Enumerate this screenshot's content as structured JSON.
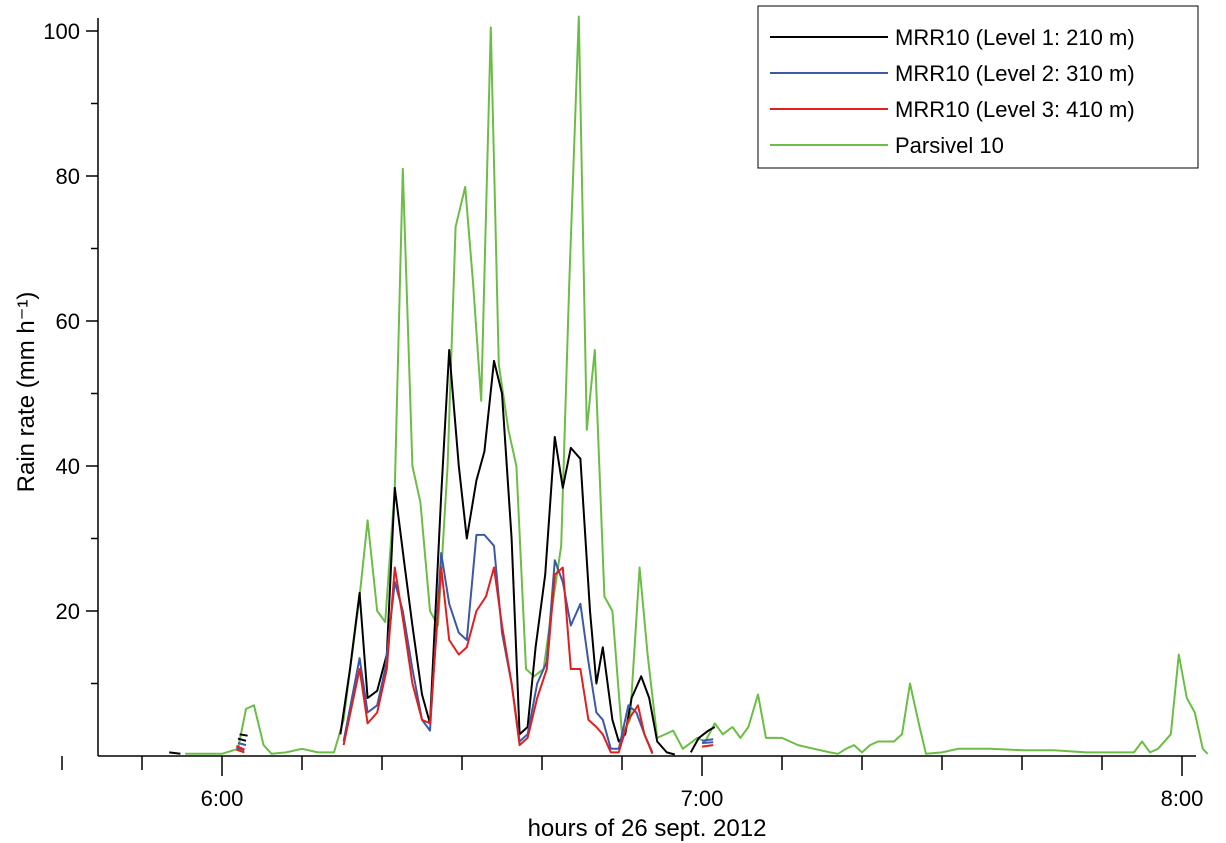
{
  "chart_data": {
    "type": "line",
    "title": "",
    "xlabel": "hours of 26 sept. 2012",
    "ylabel": "Rain rate (mm h⁻¹)",
    "x_unit": "minutes after 6:00",
    "xlim": [
      -12,
      60
    ],
    "ylim": [
      0,
      100
    ],
    "x_ticks": [
      {
        "value": 0,
        "label": "6:00"
      },
      {
        "value": 30,
        "label": "7:00"
      },
      {
        "value": 60,
        "label": "8:00"
      }
    ],
    "x_minor_ticks": [
      -10,
      -5,
      5,
      10,
      15,
      20,
      25,
      35,
      40,
      45,
      50,
      55
    ],
    "y_ticks": [
      {
        "value": 20,
        "label": "20"
      },
      {
        "value": 40,
        "label": "40"
      },
      {
        "value": 60,
        "label": "60"
      },
      {
        "value": 80,
        "label": "80"
      },
      {
        "value": 100,
        "label": "100"
      }
    ],
    "y_minor_ticks": [
      10,
      30,
      50,
      70,
      90
    ],
    "grid": false,
    "legend_position": "top-right",
    "series": [
      {
        "name": "MRR10 (Level 1: 210 m)",
        "color": "#000000",
        "segments": [
          [
            [
              -3.3,
              0.5
            ],
            [
              -2.6,
              0.3
            ]
          ],
          [
            [
              1.0,
              2.4
            ],
            [
              1.5,
              2.1
            ]
          ],
          [
            [
              1.1,
              3.0
            ],
            [
              1.6,
              2.8
            ]
          ],
          [
            [
              7.4,
              3.0
            ],
            [
              8.0,
              12.0
            ],
            [
              8.6,
              22.5
            ],
            [
              9.1,
              8.0
            ],
            [
              9.7,
              9.0
            ],
            [
              10.3,
              14.0
            ],
            [
              10.8,
              37.0
            ],
            [
              11.4,
              26.5
            ],
            [
              11.9,
              18.0
            ],
            [
              12.5,
              8.5
            ],
            [
              13.0,
              4.5
            ],
            [
              13.7,
              36.0
            ],
            [
              14.2,
              56.0
            ],
            [
              14.8,
              40.0
            ],
            [
              15.3,
              30.0
            ],
            [
              15.9,
              38.0
            ],
            [
              16.4,
              42.0
            ],
            [
              17.0,
              54.5
            ],
            [
              17.5,
              50.0
            ],
            [
              18.1,
              30.0
            ],
            [
              18.6,
              3.0
            ],
            [
              19.1,
              4.0
            ],
            [
              19.6,
              15.0
            ],
            [
              20.2,
              25.0
            ],
            [
              20.8,
              44.0
            ],
            [
              21.3,
              37.0
            ],
            [
              21.8,
              42.5
            ],
            [
              22.4,
              41.0
            ],
            [
              23.0,
              20.0
            ],
            [
              23.4,
              10.0
            ],
            [
              23.8,
              15.0
            ],
            [
              24.4,
              5.0
            ],
            [
              24.8,
              2.0
            ],
            [
              25.2,
              3.0
            ],
            [
              25.6,
              8.0
            ],
            [
              26.2,
              11.0
            ],
            [
              26.7,
              8.0
            ],
            [
              27.2,
              2.0
            ],
            [
              27.8,
              0.5
            ],
            [
              28.3,
              0.2
            ]
          ],
          [
            [
              29.3,
              0.5
            ],
            [
              29.8,
              2.5
            ],
            [
              30.4,
              3.5
            ],
            [
              30.8,
              4.0
            ]
          ]
        ]
      },
      {
        "name": "MRR10 (Level 2: 310 m)",
        "color": "#3a5aa8",
        "segments": [
          [
            [
              0.9,
              1.2
            ],
            [
              1.4,
              0.8
            ]
          ],
          [
            [
              1.0,
              1.8
            ],
            [
              1.5,
              1.5
            ]
          ],
          [
            [
              7.6,
              2.0
            ],
            [
              8.6,
              13.5
            ],
            [
              9.1,
              6.0
            ],
            [
              9.7,
              7.0
            ],
            [
              10.2,
              12.0
            ],
            [
              10.8,
              24.0
            ],
            [
              11.3,
              20.0
            ],
            [
              11.9,
              12.0
            ],
            [
              12.5,
              5.0
            ],
            [
              13.0,
              3.5
            ],
            [
              13.7,
              28.0
            ],
            [
              14.2,
              21.0
            ],
            [
              14.8,
              17.0
            ],
            [
              15.3,
              16.0
            ],
            [
              15.9,
              30.5
            ],
            [
              16.4,
              30.5
            ],
            [
              17.0,
              29.0
            ],
            [
              17.5,
              17.0
            ],
            [
              18.1,
              10.0
            ],
            [
              18.6,
              2.0
            ],
            [
              19.1,
              3.0
            ],
            [
              19.7,
              10.0
            ],
            [
              20.3,
              13.0
            ],
            [
              20.8,
              27.0
            ],
            [
              21.3,
              24.0
            ],
            [
              21.8,
              18.0
            ],
            [
              22.4,
              21.0
            ],
            [
              22.9,
              13.0
            ],
            [
              23.4,
              6.0
            ],
            [
              23.8,
              5.0
            ],
            [
              24.3,
              1.0
            ],
            [
              24.8,
              1.0
            ],
            [
              25.4,
              7.0
            ],
            [
              25.9,
              6.0
            ],
            [
              26.4,
              3.0
            ],
            [
              26.9,
              0.5
            ]
          ],
          [
            [
              30.0,
              2.1
            ],
            [
              30.7,
              2.3
            ]
          ],
          [
            [
              30.0,
              1.8
            ],
            [
              30.7,
              1.9
            ]
          ]
        ]
      },
      {
        "name": "MRR10 (Level 3: 410 m)",
        "color": "#e02020",
        "segments": [
          [
            [
              0.9,
              0.9
            ],
            [
              1.4,
              0.5
            ]
          ],
          [
            [
              0.9,
              1.4
            ],
            [
              1.4,
              0.9
            ]
          ],
          [
            [
              7.6,
              1.5
            ],
            [
              8.6,
              12.0
            ],
            [
              9.1,
              4.5
            ],
            [
              9.7,
              6.0
            ],
            [
              10.3,
              12.0
            ],
            [
              10.8,
              26.0
            ],
            [
              11.3,
              19.0
            ],
            [
              11.9,
              10.0
            ],
            [
              12.5,
              5.0
            ],
            [
              13.0,
              4.5
            ],
            [
              13.7,
              26.0
            ],
            [
              14.2,
              16.0
            ],
            [
              14.8,
              14.0
            ],
            [
              15.3,
              15.0
            ],
            [
              15.9,
              20.0
            ],
            [
              16.5,
              22.0
            ],
            [
              17.0,
              26.0
            ],
            [
              17.5,
              18.0
            ],
            [
              18.1,
              10.0
            ],
            [
              18.6,
              1.5
            ],
            [
              19.1,
              2.5
            ],
            [
              19.7,
              8.0
            ],
            [
              20.3,
              12.0
            ],
            [
              20.8,
              25.0
            ],
            [
              21.3,
              26.0
            ],
            [
              21.8,
              12.0
            ],
            [
              22.4,
              12.0
            ],
            [
              22.9,
              5.0
            ],
            [
              23.4,
              4.0
            ],
            [
              23.8,
              3.0
            ],
            [
              24.3,
              0.5
            ],
            [
              24.8,
              0.5
            ],
            [
              25.4,
              5.0
            ],
            [
              26.0,
              7.0
            ],
            [
              26.4,
              3.0
            ],
            [
              26.9,
              0.3
            ]
          ],
          [
            [
              30.0,
              1.3
            ],
            [
              30.7,
              1.5
            ]
          ]
        ]
      },
      {
        "name": "Parsivel 10",
        "color": "#6cbd45",
        "segments": [
          [
            [
              -2.3,
              0.3
            ],
            [
              0.0,
              0.3
            ],
            [
              1.0,
              1.0
            ],
            [
              1.5,
              6.5
            ],
            [
              2.0,
              7.0
            ],
            [
              2.6,
              1.5
            ],
            [
              3.1,
              0.3
            ],
            [
              4.0,
              0.5
            ],
            [
              5.0,
              1.0
            ],
            [
              6.0,
              0.5
            ],
            [
              7.0,
              0.5
            ],
            [
              7.6,
              5.0
            ],
            [
              8.6,
              22.0
            ],
            [
              9.1,
              32.5
            ],
            [
              9.7,
              20.0
            ],
            [
              10.2,
              18.5
            ],
            [
              10.8,
              37.0
            ],
            [
              11.3,
              81.0
            ],
            [
              11.9,
              40.0
            ],
            [
              12.4,
              35.0
            ],
            [
              13.0,
              20.0
            ],
            [
              13.5,
              18.0
            ],
            [
              14.1,
              40.0
            ],
            [
              14.6,
              73.0
            ],
            [
              15.2,
              78.5
            ],
            [
              15.7,
              65.0
            ],
            [
              16.2,
              49.0
            ],
            [
              16.8,
              100.5
            ],
            [
              17.3,
              54.0
            ],
            [
              17.9,
              45.0
            ],
            [
              18.4,
              40.0
            ],
            [
              19.0,
              12.0
            ],
            [
              19.5,
              11.0
            ],
            [
              20.1,
              12.0
            ],
            [
              20.6,
              20.0
            ],
            [
              21.2,
              29.0
            ],
            [
              21.7,
              65.0
            ],
            [
              22.3,
              102.0
            ],
            [
              22.8,
              45.0
            ],
            [
              23.3,
              56.0
            ],
            [
              23.9,
              22.0
            ],
            [
              24.4,
              20.0
            ],
            [
              25.0,
              3.0
            ],
            [
              25.5,
              5.0
            ],
            [
              26.1,
              26.0
            ],
            [
              26.6,
              14.0
            ],
            [
              27.2,
              2.5
            ],
            [
              28.2,
              3.5
            ],
            [
              28.8,
              1.0
            ],
            [
              29.7,
              2.5
            ],
            [
              30.2,
              2.0
            ],
            [
              30.8,
              4.5
            ],
            [
              31.3,
              3.0
            ],
            [
              31.9,
              4.0
            ],
            [
              32.4,
              2.5
            ],
            [
              32.9,
              4.0
            ],
            [
              33.5,
              8.5
            ],
            [
              34.0,
              2.5
            ],
            [
              35.0,
              2.5
            ],
            [
              36.0,
              1.5
            ],
            [
              37.0,
              1.0
            ],
            [
              38.0,
              0.5
            ],
            [
              38.5,
              0.3
            ],
            [
              39.0,
              1.0
            ],
            [
              39.5,
              1.5
            ],
            [
              40.0,
              0.5
            ],
            [
              40.5,
              1.5
            ],
            [
              41.0,
              2.0
            ],
            [
              42.0,
              2.0
            ],
            [
              42.5,
              3.0
            ],
            [
              43.0,
              10.0
            ],
            [
              43.6,
              4.0
            ],
            [
              44.0,
              0.3
            ],
            [
              45.0,
              0.5
            ],
            [
              46.0,
              1.0
            ],
            [
              48.0,
              1.0
            ],
            [
              50.0,
              0.8
            ],
            [
              52.0,
              0.8
            ],
            [
              54.0,
              0.5
            ],
            [
              56.0,
              0.5
            ],
            [
              57.0,
              0.5
            ],
            [
              57.5,
              2.0
            ],
            [
              58.0,
              0.5
            ],
            [
              58.5,
              1.0
            ],
            [
              59.3,
              3.0
            ],
            [
              59.8,
              14.0
            ],
            [
              60.3,
              8.0
            ],
            [
              60.8,
              6.0
            ],
            [
              61.3,
              1.0
            ],
            [
              61.6,
              0.3
            ]
          ]
        ]
      }
    ]
  }
}
